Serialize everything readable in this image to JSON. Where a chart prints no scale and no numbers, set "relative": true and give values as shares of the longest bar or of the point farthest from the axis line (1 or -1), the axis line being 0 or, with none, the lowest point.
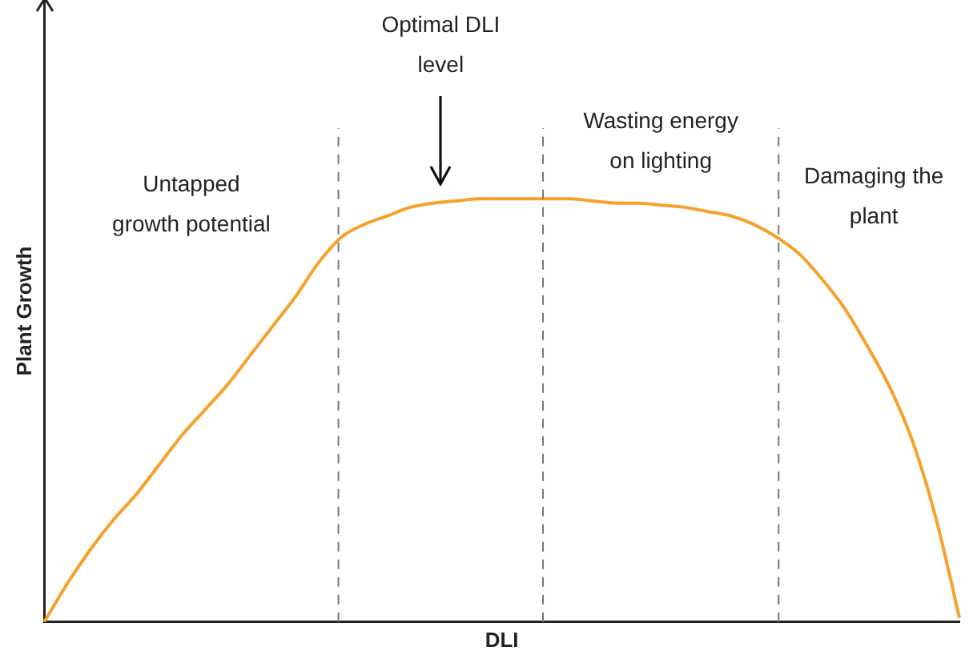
{
  "chart_data": {
    "type": "line",
    "xlabel": "DLI",
    "ylabel": "Plant Growth",
    "relative": true,
    "grid": false,
    "legend": false,
    "tick_labels": false,
    "marker": "none",
    "categories": [
      null,
      null,
      null,
      null,
      null,
      null,
      null,
      null,
      null,
      null,
      null,
      null,
      null,
      null,
      null,
      null,
      null,
      null,
      null,
      null,
      null,
      null,
      null,
      null,
      null,
      null,
      null,
      null,
      null,
      null,
      null,
      null,
      null,
      null,
      null,
      null,
      null,
      null,
      null,
      null,
      null
    ],
    "series": [
      {
        "color": "#f7a12a",
        "values": [
          0,
          0.09,
          0.17,
          0.24,
          0.3,
          0.37,
          0.44,
          0.5,
          0.56,
          0.63,
          0.7,
          0.77,
          0.85,
          0.91,
          0.94,
          0.96,
          0.98,
          0.99,
          0.995,
          1,
          1,
          1,
          1,
          1,
          0.995,
          0.99,
          0.99,
          0.985,
          0.98,
          0.97,
          0.96,
          0.94,
          0.91,
          0.87,
          0.81,
          0.74,
          0.65,
          0.55,
          0.42,
          0.24,
          0.01
        ]
      }
    ],
    "annotations": [
      "Untapped growth potential",
      "Optimal DLI level",
      "Wasting energy on lighting",
      "Damaging the plant"
    ]
  }
}
